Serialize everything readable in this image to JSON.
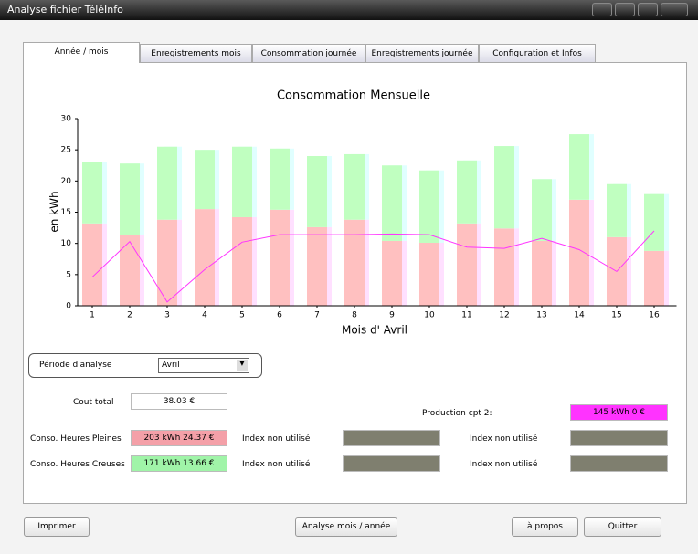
{
  "window": {
    "title": "Analyse fichier TéléInfo"
  },
  "tabs": [
    "Année  /  mois",
    "Enregistrements mois",
    "Consommation journée",
    "Enregistrements journée",
    "Configuration et Infos"
  ],
  "chart_data": {
    "type": "bar",
    "title": "Consommation Mensuelle",
    "x_label": "Mois d' Avril",
    "y_label": "en kWh",
    "categories": [
      "1",
      "2",
      "3",
      "4",
      "5",
      "6",
      "7",
      "8",
      "9",
      "10",
      "11",
      "12",
      "13",
      "14",
      "15",
      "16"
    ],
    "series": [
      {
        "color": "#ffc0c0",
        "values": [
          13.2,
          11.4,
          13.8,
          15.5,
          14.2,
          15.4,
          12.6,
          13.8,
          10.4,
          10.1,
          13.2,
          12.4,
          10.4,
          17.0,
          11.0,
          8.8
        ]
      },
      {
        "color": "#c0ffc0",
        "values": [
          9.9,
          11.4,
          11.7,
          9.5,
          11.3,
          9.8,
          11.4,
          10.5,
          12.1,
          11.6,
          10.1,
          13.2,
          9.9,
          10.5,
          8.5,
          9.1
        ]
      }
    ],
    "line": {
      "type": "line",
      "color": "#ff33ff",
      "values": [
        4.6,
        10.3,
        0.6,
        5.8,
        10.2,
        11.4,
        11.4,
        11.4,
        11.5,
        11.4,
        9.4,
        9.2,
        10.8,
        9.0,
        5.5,
        12.0
      ]
    },
    "ylim": [
      0,
      30
    ],
    "yticks": [
      0,
      5,
      10,
      15,
      20,
      25,
      30
    ],
    "stacked": true
  },
  "form": {
    "period_label": "Période d'analyse",
    "period_value": "Avril",
    "cost_label": "Cout total",
    "cost_value": "38.03 €",
    "prod_label": "Production cpt 2:",
    "prod_value": "145 kWh 0 €",
    "hp_label": "Conso. Heures Pleines",
    "hp_value": "203 kWh  24.37 €",
    "hc_label": "Conso. Heures Creuses",
    "hc_value": "171 kWh  13.66 €",
    "unused": [
      "Index non utilisé",
      "Index non utilisé",
      "Index non utilisé",
      "Index non utilisé"
    ]
  },
  "buttons": [
    "Imprimer",
    "Analyse mois / année",
    "à propos",
    "Quitter"
  ]
}
